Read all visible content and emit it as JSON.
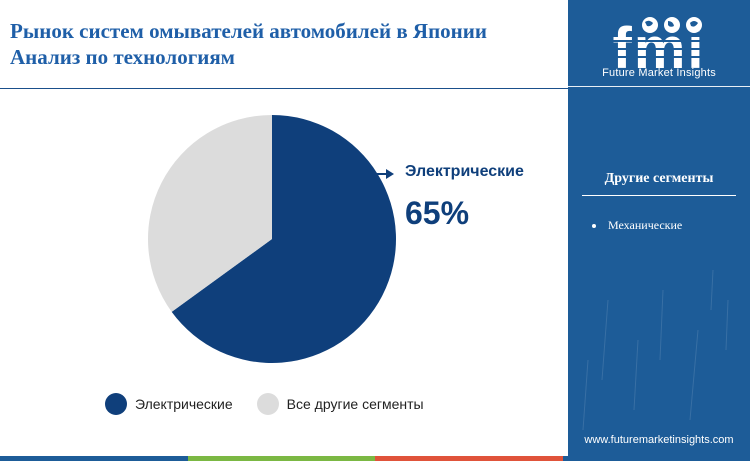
{
  "header": {
    "title_line1": "Рынок систем омывателей автомобилей в Японии",
    "title_line2": "Анализ по технологиям"
  },
  "chart_data": {
    "type": "pie",
    "slices": [
      {
        "label": "Электрические",
        "value": 65,
        "color": "#0f3f7b"
      },
      {
        "label": "Все другие сегменты",
        "value": 35,
        "color": "#dcdcdc"
      }
    ],
    "callout": {
      "label": "Электрические",
      "value_text": "65%"
    },
    "legend_position": "bottom"
  },
  "legend": {
    "items": [
      {
        "label": "Электрические",
        "color": "#0f3f7b"
      },
      {
        "label": "Все другие сегменты",
        "color": "#dcdcdc"
      }
    ]
  },
  "sidebar": {
    "logo_text": "fmi",
    "logo_subtitle": "Future Market Insights",
    "segments_heading": "Другие сегменты",
    "segments": [
      "Механические"
    ],
    "website": "www.futuremarketinsights.com"
  },
  "colors": {
    "primary_dark": "#0f3f7b",
    "sidebar_blue": "#1d5c98",
    "title_blue": "#1f5fa8",
    "bottom_bar": [
      "#1d5c98",
      "#7bb843",
      "#e0533a",
      "#1d5c98"
    ]
  }
}
